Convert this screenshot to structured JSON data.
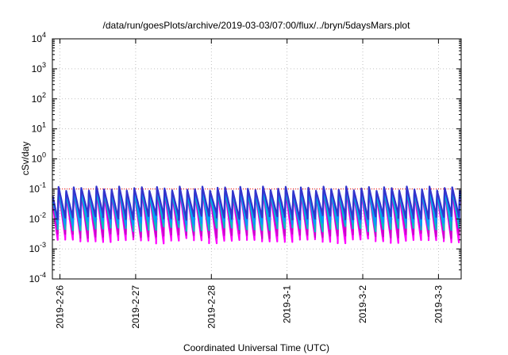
{
  "chart_data": {
    "type": "line",
    "title": "/data/run/goesPlots/archive/2019-03-03/07:00/flux/../bryn/5daysMars.plot",
    "xlabel": "Coordinated Universal Time (UTC)",
    "ylabel": "cSv/day",
    "yscale": "log",
    "ylim": [
      0.0001,
      10000
    ],
    "xlim": [
      -0.1,
      5.3
    ],
    "yticks": [
      {
        "base": "10",
        "exp": "-4",
        "value": 0.0001
      },
      {
        "base": "10",
        "exp": "-3",
        "value": 0.001
      },
      {
        "base": "10",
        "exp": "-2",
        "value": 0.01
      },
      {
        "base": "10",
        "exp": "-1",
        "value": 0.1
      },
      {
        "base": "10",
        "exp": "0",
        "value": 1
      },
      {
        "base": "10",
        "exp": "1",
        "value": 10
      },
      {
        "base": "10",
        "exp": "2",
        "value": 100
      },
      {
        "base": "10",
        "exp": "3",
        "value": 1000
      },
      {
        "base": "10",
        "exp": "4",
        "value": 10000
      }
    ],
    "xticks": [
      {
        "label": "2019-2-26",
        "day": 0
      },
      {
        "label": "2019-2-27",
        "day": 1
      },
      {
        "label": "2019-2-28",
        "day": 2
      },
      {
        "label": "2019-3-1",
        "day": 3
      },
      {
        "label": "2019-3-2",
        "day": 4
      },
      {
        "label": "2019-3-3",
        "day": 5
      }
    ],
    "grid": true,
    "threshold": {
      "value": 0.1,
      "color": "#ff0000"
    },
    "sawtooth_period_days": 0.1,
    "series": [
      {
        "color": "#ff00ff",
        "peak": 0.085,
        "trough": 0.002
      },
      {
        "color": "#cc00cc",
        "peak": 0.09,
        "trough": 0.003
      },
      {
        "color": "#00c0c0",
        "peak": 0.095,
        "trough": 0.005
      },
      {
        "color": "#0099ff",
        "peak": 0.105,
        "trough": 0.008
      },
      {
        "color": "#3333cc",
        "peak": 0.115,
        "trough": 0.012
      }
    ]
  }
}
